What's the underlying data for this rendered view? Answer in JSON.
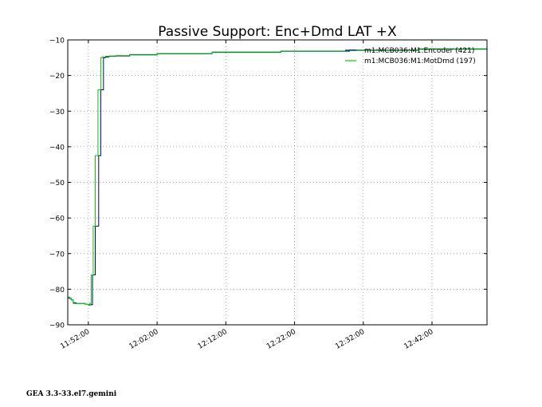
{
  "chart_data": {
    "type": "line",
    "title": "Passive Support:  Enc+Dmd LAT +X",
    "xlabel": "",
    "ylabel": "",
    "x_unit": "minutes since 00:00 (time of day)",
    "xlim": [
      709.0,
      770.0
    ],
    "ylim": [
      -90,
      -10
    ],
    "x_ticks": [
      {
        "value": 712,
        "label": "11:52:00"
      },
      {
        "value": 722,
        "label": "12:02:00"
      },
      {
        "value": 732,
        "label": "12:12:00"
      },
      {
        "value": 742,
        "label": "12:22:00"
      },
      {
        "value": 752,
        "label": "12:32:00"
      },
      {
        "value": 762,
        "label": "12:42:00"
      }
    ],
    "y_ticks": [
      {
        "value": -10,
        "label": "−10"
      },
      {
        "value": -20,
        "label": "−20"
      },
      {
        "value": -30,
        "label": "−30"
      },
      {
        "value": -40,
        "label": "−40"
      },
      {
        "value": -50,
        "label": "−50"
      },
      {
        "value": -60,
        "label": "−60"
      },
      {
        "value": -70,
        "label": "−70"
      },
      {
        "value": -80,
        "label": "−80"
      },
      {
        "value": -90,
        "label": "−90"
      }
    ],
    "grid": true,
    "legend_position": "top-right",
    "series": [
      {
        "name": "m1:MCB036:M1:Encoder (421)",
        "color": "#000080",
        "step": true,
        "x": [
          709.0,
          709.3,
          709.5,
          709.8,
          710.2,
          711.0,
          711.5,
          711.9,
          712.0,
          712.5,
          712.6,
          713.0,
          713.2,
          713.5,
          713.8,
          714.2,
          714.5,
          715.0,
          716.0,
          718.0,
          722.0,
          730.0,
          740.0,
          750.0,
          760.0,
          770.0
        ],
        "y": [
          -82.5,
          -82.6,
          -83.0,
          -83.8,
          -84.0,
          -84.0,
          -84.2,
          -84.3,
          -84.4,
          -84.3,
          -76.0,
          -62.3,
          -62.3,
          -42.5,
          -24.0,
          -15.0,
          -14.8,
          -14.6,
          -14.5,
          -14.2,
          -13.9,
          -13.5,
          -13.2,
          -12.9,
          -12.6,
          -12.3
        ]
      },
      {
        "name": "m1:MCB036:M1:MotDmd (197)",
        "color": "#00cc00",
        "step": true,
        "x": [
          709.0,
          709.3,
          709.5,
          709.8,
          710.2,
          711.0,
          711.5,
          711.9,
          712.0,
          712.2,
          712.4,
          712.7,
          713.0,
          713.4,
          713.8,
          714.0,
          714.5,
          715.0,
          716.0,
          718.0,
          722.0,
          730.0,
          740.0,
          750.0,
          760.0,
          770.0
        ],
        "y": [
          -82.2,
          -82.5,
          -83.0,
          -84.0,
          -84.0,
          -84.0,
          -84.2,
          -84.3,
          -84.5,
          -84.0,
          -76.0,
          -62.3,
          -42.5,
          -24.0,
          -15.0,
          -14.8,
          -14.6,
          -14.5,
          -14.4,
          -14.1,
          -13.8,
          -13.4,
          -13.1,
          -12.8,
          -12.5,
          -12.2
        ]
      }
    ]
  },
  "footer_text": "GEA 3.3-33.el7.gemini"
}
